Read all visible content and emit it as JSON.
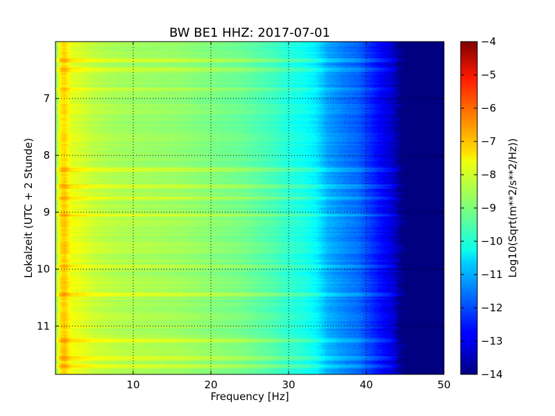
{
  "chart_data": {
    "type": "heatmap",
    "title": "BW BE1 HHZ: 2017-07-01",
    "xlabel": "Frequency [Hz]",
    "ylabel": "Lokalzeit (UTC + 2 Stunde)",
    "xlim": [
      0,
      50
    ],
    "ylim": [
      6.0,
      11.85
    ],
    "y_inverted": true,
    "x_ticks": [
      10,
      20,
      30,
      40,
      50
    ],
    "x_tick_labels": [
      "10",
      "20",
      "30",
      "40",
      "50"
    ],
    "y_ticks": [
      7,
      8,
      9,
      10,
      11
    ],
    "y_tick_labels": [
      "7",
      "8",
      "9",
      "10",
      "11"
    ],
    "grid": true,
    "colormap": "jet",
    "colorbar": {
      "label": "Log10(Sqrt(m**2/s**2/Hz))",
      "range": [
        -14,
        -4
      ],
      "ticks": [
        -4,
        -5,
        -6,
        -7,
        -8,
        -9,
        -10,
        -11,
        -12,
        -13,
        -14
      ],
      "tick_labels": [
        "−4",
        "−5",
        "−6",
        "−7",
        "−8",
        "−9",
        "−10",
        "−11",
        "−12",
        "−13",
        "−14"
      ]
    },
    "spectral_profile": {
      "frequency_hz": [
        0,
        0.7,
        1.2,
        2,
        3,
        5,
        8,
        12,
        16,
        20,
        24,
        28,
        30,
        32,
        33.5,
        35,
        37,
        39,
        41,
        43,
        44.5,
        45.5,
        50
      ],
      "log10_amplitude": [
        -8.9,
        -7.4,
        -7.2,
        -7.9,
        -8.0,
        -8.3,
        -8.5,
        -8.6,
        -8.7,
        -8.9,
        -9.1,
        -9.5,
        -9.8,
        -10.0,
        -10.3,
        -11.0,
        -11.4,
        -11.7,
        -12.4,
        -13.0,
        -13.7,
        -14.0,
        -14.0
      ]
    },
    "bright_horizontal_bands_local_time": [
      6.33,
      6.5,
      6.83,
      8.25,
      8.55,
      8.75,
      9.05,
      9.95,
      10.45,
      11.25,
      11.57,
      11.7
    ],
    "quiet_period_local_time": [
      6.0,
      8.5
    ]
  }
}
